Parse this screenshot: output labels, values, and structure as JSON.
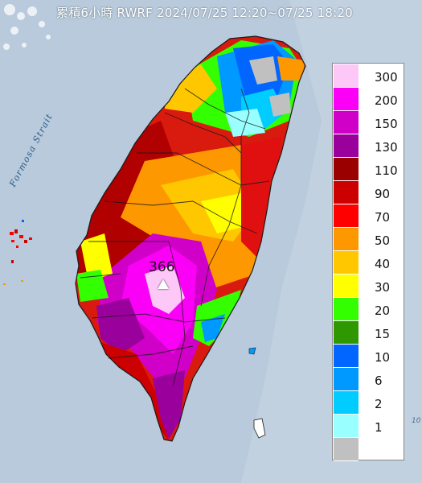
{
  "title": "累積6小時 RWRF 2024/07/25 12:20~07/25 18:20",
  "map": {
    "sea_label": "Formosa Strait",
    "peak_value": "366",
    "edge_text": "10"
  },
  "legend": {
    "items": [
      {
        "label": "300",
        "color": "#fdc8f8"
      },
      {
        "label": "200",
        "color": "#fb00f6"
      },
      {
        "label": "150",
        "color": "#d100c8"
      },
      {
        "label": "130",
        "color": "#9a009c"
      },
      {
        "label": "110",
        "color": "#9b0000"
      },
      {
        "label": "90",
        "color": "#cc0000"
      },
      {
        "label": "70",
        "color": "#fe0000"
      },
      {
        "label": "50",
        "color": "#fe9800"
      },
      {
        "label": "40",
        "color": "#fec700"
      },
      {
        "label": "30",
        "color": "#ffff00"
      },
      {
        "label": "20",
        "color": "#33ff00"
      },
      {
        "label": "15",
        "color": "#2f9800"
      },
      {
        "label": "10",
        "color": "#0066ff"
      },
      {
        "label": "6",
        "color": "#0099ff"
      },
      {
        "label": "2",
        "color": "#00ccff"
      },
      {
        "label": "1",
        "color": "#99ffff"
      },
      {
        "label": "",
        "color": "#c0c0c0"
      }
    ]
  },
  "colors": {
    "sea": "#b8cadb",
    "peak_marker": "#ffffff"
  }
}
